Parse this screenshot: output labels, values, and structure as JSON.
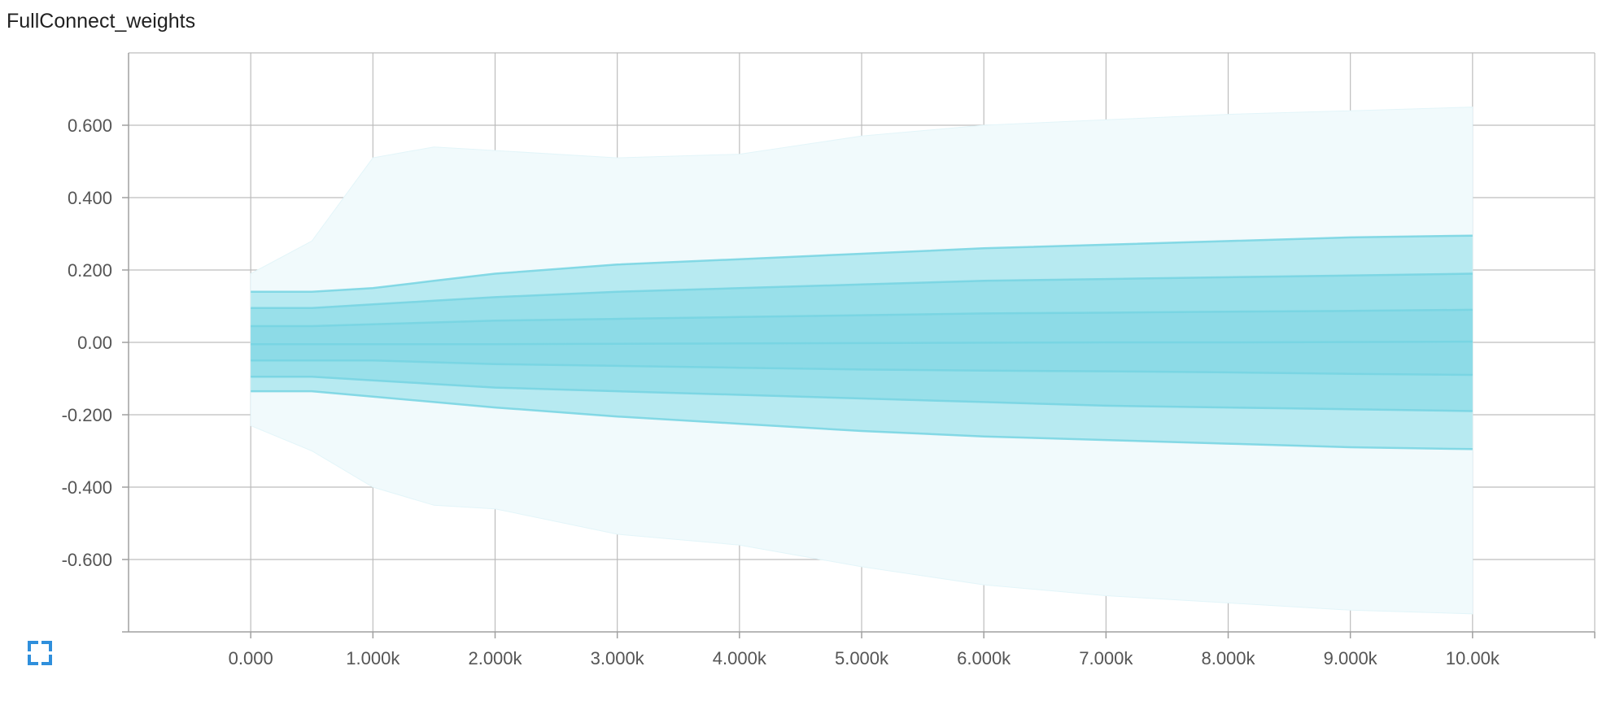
{
  "chart_data": {
    "type": "area",
    "title": "FullConnect_weights",
    "xlabel": "",
    "ylabel": "",
    "xlim": [
      -1000,
      11000
    ],
    "ylim": [
      -0.8,
      0.8
    ],
    "grid": true,
    "legend": "none",
    "x_ticks": [
      {
        "value": 0,
        "label": "0.000"
      },
      {
        "value": 1000,
        "label": "1.000k"
      },
      {
        "value": 2000,
        "label": "2.000k"
      },
      {
        "value": 3000,
        "label": "3.000k"
      },
      {
        "value": 4000,
        "label": "4.000k"
      },
      {
        "value": 5000,
        "label": "5.000k"
      },
      {
        "value": 6000,
        "label": "6.000k"
      },
      {
        "value": 7000,
        "label": "7.000k"
      },
      {
        "value": 8000,
        "label": "8.000k"
      },
      {
        "value": 9000,
        "label": "9.000k"
      },
      {
        "value": 10000,
        "label": "10.00k"
      }
    ],
    "y_ticks": [
      {
        "value": 0.6,
        "label": "0.600"
      },
      {
        "value": 0.4,
        "label": "0.400"
      },
      {
        "value": 0.2,
        "label": "0.200"
      },
      {
        "value": 0.0,
        "label": "0.00"
      },
      {
        "value": -0.2,
        "label": "-0.200"
      },
      {
        "value": -0.4,
        "label": "-0.400"
      },
      {
        "value": -0.6,
        "label": "-0.600"
      }
    ],
    "x": [
      0,
      500,
      1000,
      1500,
      2000,
      3000,
      4000,
      5000,
      6000,
      7000,
      8000,
      9000,
      10000
    ],
    "series": [
      {
        "values": [
          0.19,
          0.28,
          0.51,
          0.54,
          0.53,
          0.51,
          0.52,
          0.57,
          0.6,
          0.615,
          0.63,
          0.64,
          0.65
        ]
      },
      {
        "values": [
          0.14,
          0.14,
          0.15,
          0.17,
          0.19,
          0.215,
          0.23,
          0.245,
          0.26,
          0.27,
          0.28,
          0.29,
          0.295
        ]
      },
      {
        "values": [
          0.095,
          0.095,
          0.105,
          0.115,
          0.125,
          0.14,
          0.15,
          0.16,
          0.17,
          0.175,
          0.18,
          0.185,
          0.19
        ]
      },
      {
        "values": [
          0.045,
          0.045,
          0.05,
          0.055,
          0.06,
          0.065,
          0.07,
          0.075,
          0.08,
          0.082,
          0.085,
          0.087,
          0.09
        ]
      },
      {
        "values": [
          -0.005,
          -0.005,
          -0.005,
          -0.005,
          -0.005,
          -0.004,
          -0.003,
          -0.002,
          -0.001,
          0.0,
          0.0,
          0.001,
          0.002
        ]
      },
      {
        "values": [
          -0.05,
          -0.05,
          -0.05,
          -0.055,
          -0.06,
          -0.065,
          -0.07,
          -0.075,
          -0.078,
          -0.08,
          -0.083,
          -0.087,
          -0.09
        ]
      },
      {
        "values": [
          -0.095,
          -0.095,
          -0.105,
          -0.115,
          -0.125,
          -0.135,
          -0.145,
          -0.155,
          -0.165,
          -0.175,
          -0.18,
          -0.185,
          -0.19
        ]
      },
      {
        "values": [
          -0.135,
          -0.135,
          -0.15,
          -0.165,
          -0.18,
          -0.205,
          -0.225,
          -0.245,
          -0.26,
          -0.27,
          -0.28,
          -0.29,
          -0.295
        ]
      },
      {
        "values": [
          -0.23,
          -0.3,
          -0.4,
          -0.45,
          -0.46,
          -0.53,
          -0.56,
          -0.62,
          -0.67,
          -0.7,
          -0.72,
          -0.74,
          -0.75
        ]
      }
    ],
    "colors": {
      "band_outer": "#f1fafc",
      "band_outer_edge": "#e3f5f9",
      "band_mid": "#b7eaf1",
      "band_inner": "#99e0ea",
      "band_core": "#8ddbe7",
      "lines": "#76d4e2",
      "grid": "#bdbdbd",
      "axis": "#a0a0a0"
    }
  },
  "ui": {
    "expand_icon": "fullscreen-corners-icon",
    "accent": "#2f8fdc"
  }
}
